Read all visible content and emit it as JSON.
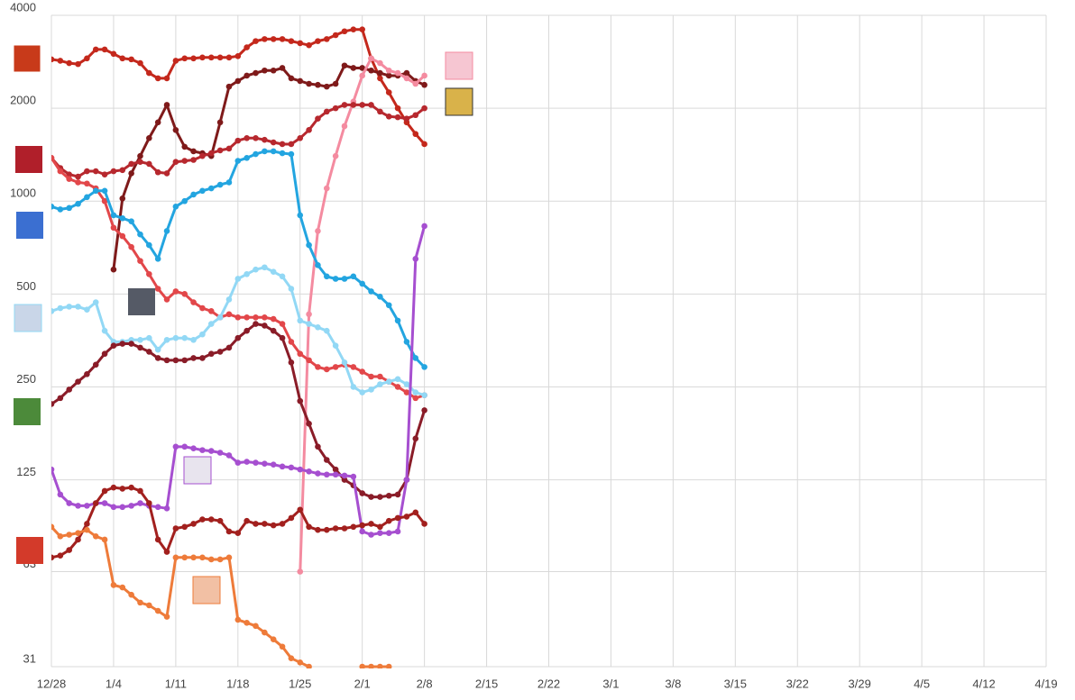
{
  "chart_data": {
    "type": "line",
    "log_scale": true,
    "grid": true,
    "x": [
      0,
      1,
      2,
      3,
      4,
      5,
      6,
      7,
      8,
      9,
      10,
      11,
      12,
      13,
      14,
      15,
      16,
      17,
      18,
      19,
      20,
      21,
      22,
      23,
      24,
      25,
      26,
      27,
      28,
      29,
      30,
      31,
      32,
      33,
      34,
      35,
      36,
      37,
      38,
      39,
      40,
      41,
      42
    ],
    "xlim": [
      0,
      112
    ],
    "xticks": [
      {
        "value": 0,
        "label": "12/28"
      },
      {
        "value": 7,
        "label": "1/4"
      },
      {
        "value": 14,
        "label": "1/11"
      },
      {
        "value": 21,
        "label": "1/18"
      },
      {
        "value": 28,
        "label": "1/25"
      },
      {
        "value": 35,
        "label": "2/1"
      },
      {
        "value": 42,
        "label": "2/8"
      },
      {
        "value": 49,
        "label": "2/15"
      },
      {
        "value": 56,
        "label": "2/22"
      },
      {
        "value": 63,
        "label": "3/1"
      },
      {
        "value": 70,
        "label": "3/8"
      },
      {
        "value": 77,
        "label": "3/15"
      },
      {
        "value": 84,
        "label": "3/22"
      },
      {
        "value": 91,
        "label": "3/29"
      },
      {
        "value": 98,
        "label": "4/5"
      },
      {
        "value": 105,
        "label": "4/12"
      },
      {
        "value": 112,
        "label": "4/19"
      }
    ],
    "ylim": [
      31,
      4000
    ],
    "yticks": [
      31,
      63,
      125,
      250,
      500,
      1000,
      2000,
      4000
    ],
    "series": [
      {
        "color": "#c4281c",
        "values": [
          2880,
          2850,
          2800,
          2780,
          2900,
          3100,
          3100,
          3000,
          2900,
          2880,
          2800,
          2600,
          2500,
          2500,
          2850,
          2900,
          2900,
          2920,
          2920,
          2920,
          2920,
          2950,
          3150,
          3300,
          3350,
          3350,
          3350,
          3300,
          3250,
          3200,
          3300,
          3350,
          3450,
          3550,
          3600,
          3600,
          2900,
          2500,
          2250,
          2000,
          1800,
          1650,
          1530
        ]
      },
      {
        "color": "#7f1a1a",
        "values": [
          null,
          null,
          null,
          null,
          null,
          null,
          null,
          600,
          1020,
          1230,
          1400,
          1600,
          1800,
          2050,
          1700,
          1500,
          1450,
          1430,
          1400,
          1800,
          2350,
          2450,
          2550,
          2600,
          2650,
          2650,
          2700,
          2500,
          2450,
          2400,
          2380,
          2350,
          2400,
          2750,
          2700,
          2700,
          2650,
          2600,
          2550,
          2550,
          2600,
          2450,
          2380
        ]
      },
      {
        "color": "#f48ba0",
        "values": [
          null,
          null,
          null,
          null,
          null,
          null,
          null,
          null,
          null,
          null,
          null,
          null,
          null,
          null,
          null,
          null,
          null,
          null,
          null,
          null,
          null,
          null,
          null,
          null,
          null,
          null,
          null,
          null,
          63,
          430,
          800,
          1100,
          1400,
          1750,
          2100,
          2550,
          2900,
          2800,
          2650,
          2600,
          2500,
          2400,
          2550
        ]
      },
      {
        "color": "#b7282e",
        "values": [
          1380,
          1280,
          1220,
          1200,
          1250,
          1250,
          1220,
          1250,
          1260,
          1320,
          1340,
          1320,
          1240,
          1230,
          1340,
          1350,
          1360,
          1400,
          1430,
          1460,
          1480,
          1570,
          1600,
          1600,
          1580,
          1550,
          1530,
          1530,
          1600,
          1700,
          1850,
          1950,
          2000,
          2050,
          2050,
          2050,
          2050,
          1950,
          1880,
          1870,
          1850,
          1900,
          2000
        ]
      },
      {
        "color": "#e2474a",
        "values": [
          1380,
          1250,
          1180,
          1150,
          1140,
          1100,
          1000,
          820,
          770,
          710,
          640,
          580,
          520,
          480,
          510,
          500,
          470,
          450,
          440,
          420,
          430,
          420,
          420,
          420,
          420,
          415,
          400,
          350,
          320,
          305,
          290,
          285,
          290,
          295,
          290,
          280,
          270,
          270,
          260,
          250,
          240,
          230,
          235
        ]
      },
      {
        "color": "#23a5e0",
        "values": [
          960,
          940,
          950,
          980,
          1030,
          1080,
          1080,
          900,
          880,
          860,
          780,
          720,
          650,
          800,
          960,
          1000,
          1050,
          1080,
          1100,
          1130,
          1150,
          1350,
          1380,
          1420,
          1450,
          1450,
          1430,
          1420,
          900,
          720,
          620,
          570,
          560,
          560,
          570,
          540,
          510,
          490,
          460,
          410,
          350,
          310,
          290
        ]
      },
      {
        "color": "#92d8f5",
        "values": [
          440,
          450,
          455,
          455,
          445,
          470,
          380,
          350,
          350,
          355,
          355,
          360,
          330,
          355,
          360,
          360,
          355,
          370,
          400,
          420,
          480,
          560,
          580,
          600,
          610,
          590,
          570,
          520,
          410,
          400,
          390,
          380,
          340,
          300,
          250,
          240,
          245,
          255,
          260,
          265,
          255,
          240,
          235
        ]
      },
      {
        "color": "#8a1c28",
        "values": [
          220,
          230,
          245,
          260,
          275,
          295,
          320,
          340,
          345,
          345,
          335,
          325,
          310,
          305,
          305,
          305,
          310,
          310,
          320,
          325,
          335,
          360,
          380,
          400,
          395,
          380,
          360,
          300,
          225,
          190,
          160,
          145,
          135,
          125,
          120,
          113,
          110,
          110,
          111,
          112,
          125,
          170,
          210
        ]
      },
      {
        "color": "#a64fd0",
        "values": [
          135,
          112,
          105,
          103,
          103,
          105,
          105,
          102,
          102,
          103,
          105,
          103,
          102,
          101,
          160,
          160,
          158,
          156,
          155,
          153,
          150,
          142,
          143,
          142,
          141,
          140,
          138,
          137,
          135,
          133,
          131,
          130,
          130,
          129,
          128,
          85,
          83,
          84,
          84,
          85,
          125,
          650,
          830
        ]
      },
      {
        "color": "#a2201e",
        "values": [
          70,
          71,
          74,
          80,
          90,
          105,
          115,
          118,
          117,
          118,
          115,
          105,
          80,
          73,
          87,
          88,
          90,
          93,
          93,
          92,
          85,
          84,
          92,
          90,
          90,
          89,
          90,
          94,
          100,
          88,
          86,
          86,
          87,
          87,
          88,
          89,
          90,
          88,
          92,
          94,
          95,
          98,
          90
        ]
      },
      {
        "color": "#ee7b3a",
        "values": [
          88,
          82,
          83,
          84,
          86,
          82,
          80,
          57,
          56,
          53,
          50,
          49,
          47,
          45,
          70,
          70,
          70,
          70,
          69,
          69,
          70,
          44,
          43,
          42,
          40,
          38,
          36,
          33,
          32,
          31,
          null,
          null,
          null,
          null,
          null,
          31,
          31,
          31,
          31,
          null,
          null,
          null,
          null
        ]
      }
    ]
  }
}
